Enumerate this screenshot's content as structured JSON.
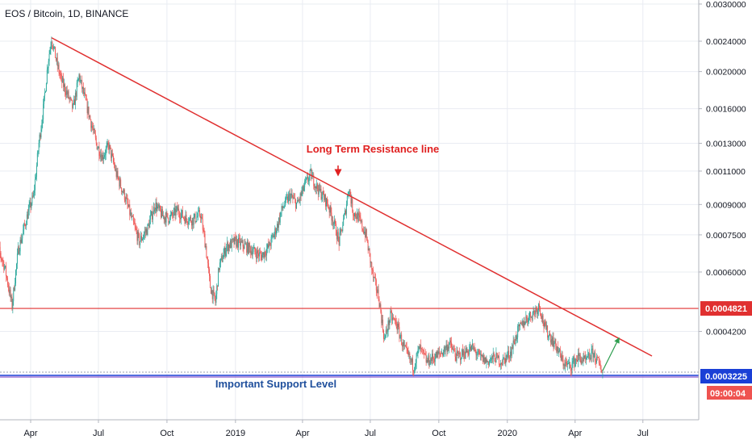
{
  "header": {
    "title": "EOS / Bitcoin, 1D, BINANCE"
  },
  "colors": {
    "up": "#26a69a",
    "down": "#ef5350",
    "resistance": "#e03030",
    "support_blue": "#1a3fd6",
    "support_purple": "#6a2bbf",
    "annotation_red": "#e02020",
    "annotation_blue": "#1f4f9c",
    "arrow_green": "#2e9e4f",
    "grid": "#e9ecf2"
  },
  "chart_data": {
    "type": "candlestick",
    "scale": "log",
    "ylim": [
      0.000285,
      0.003
    ],
    "yticks": [
      "0.0030000",
      "0.0024000",
      "0.0020000",
      "0.0016000",
      "0.0013000",
      "0.0011000",
      "0.0009000",
      "0.0007500",
      "0.0006000",
      "0.0004200"
    ],
    "xticks": [
      {
        "label": "Apr",
        "date": "2018-04-01"
      },
      {
        "label": "Jul",
        "date": "2018-07-01"
      },
      {
        "label": "Oct",
        "date": "2018-10-01"
      },
      {
        "label": "2019",
        "date": "2019-01-01"
      },
      {
        "label": "Apr",
        "date": "2019-04-01"
      },
      {
        "label": "Jul",
        "date": "2019-07-01"
      },
      {
        "label": "Oct",
        "date": "2019-10-01"
      },
      {
        "label": "2020",
        "date": "2020-01-01"
      },
      {
        "label": "Apr",
        "date": "2020-04-01"
      },
      {
        "label": "Jul",
        "date": "2020-07-01"
      }
    ],
    "price_path": [
      [
        "2018-02-10",
        0.00075
      ],
      [
        "2018-02-25",
        0.00062
      ],
      [
        "2018-03-07",
        0.00049
      ],
      [
        "2018-03-15",
        0.00068
      ],
      [
        "2018-03-28",
        0.00085
      ],
      [
        "2018-04-05",
        0.00095
      ],
      [
        "2018-04-12",
        0.0013
      ],
      [
        "2018-04-18",
        0.0016
      ],
      [
        "2018-04-24",
        0.0021
      ],
      [
        "2018-04-29",
        0.00245
      ],
      [
        "2018-05-05",
        0.00215
      ],
      [
        "2018-05-12",
        0.0019
      ],
      [
        "2018-05-20",
        0.00175
      ],
      [
        "2018-05-28",
        0.0016
      ],
      [
        "2018-06-05",
        0.00195
      ],
      [
        "2018-06-12",
        0.00172
      ],
      [
        "2018-06-20",
        0.0015
      ],
      [
        "2018-06-28",
        0.0013
      ],
      [
        "2018-07-06",
        0.0012
      ],
      [
        "2018-07-15",
        0.00128
      ],
      [
        "2018-07-25",
        0.00108
      ],
      [
        "2018-08-05",
        0.00095
      ],
      [
        "2018-08-15",
        0.00082
      ],
      [
        "2018-08-25",
        0.00072
      ],
      [
        "2018-09-05",
        0.00078
      ],
      [
        "2018-09-15",
        0.0009
      ],
      [
        "2018-09-25",
        0.00084
      ],
      [
        "2018-10-05",
        0.00083
      ],
      [
        "2018-10-15",
        0.00087
      ],
      [
        "2018-10-25",
        0.00083
      ],
      [
        "2018-11-05",
        0.00082
      ],
      [
        "2018-11-15",
        0.00085
      ],
      [
        "2018-11-22",
        0.0007
      ],
      [
        "2018-11-28",
        0.00055
      ],
      [
        "2018-12-05",
        0.0005
      ],
      [
        "2018-12-10",
        0.00062
      ],
      [
        "2018-12-20",
        0.0007
      ],
      [
        "2019-01-01",
        0.00072
      ],
      [
        "2019-01-15",
        0.0007
      ],
      [
        "2019-01-25",
        0.00068
      ],
      [
        "2019-02-05",
        0.00066
      ],
      [
        "2019-02-15",
        0.0007
      ],
      [
        "2019-02-25",
        0.00078
      ],
      [
        "2019-03-05",
        0.00088
      ],
      [
        "2019-03-15",
        0.00095
      ],
      [
        "2019-03-25",
        0.0009
      ],
      [
        "2019-04-05",
        0.00102
      ],
      [
        "2019-04-12",
        0.00108
      ],
      [
        "2019-04-20",
        0.001
      ],
      [
        "2019-04-28",
        0.00095
      ],
      [
        "2019-05-05",
        0.0009
      ],
      [
        "2019-05-12",
        0.00082
      ],
      [
        "2019-05-20",
        0.00072
      ],
      [
        "2019-05-28",
        0.00085
      ],
      [
        "2019-06-02",
        0.001
      ],
      [
        "2019-06-08",
        0.00086
      ],
      [
        "2019-06-15",
        0.00083
      ],
      [
        "2019-06-25",
        0.00075
      ],
      [
        "2019-07-05",
        0.00058
      ],
      [
        "2019-07-12",
        0.00052
      ],
      [
        "2019-07-20",
        0.0004
      ],
      [
        "2019-07-28",
        0.00046
      ],
      [
        "2019-08-05",
        0.00044
      ],
      [
        "2019-08-15",
        0.00038
      ],
      [
        "2019-08-28",
        0.00034
      ],
      [
        "2019-09-05",
        0.00038
      ],
      [
        "2019-09-15",
        0.00035
      ],
      [
        "2019-09-25",
        0.00036
      ],
      [
        "2019-10-05",
        0.00037
      ],
      [
        "2019-10-15",
        0.00039
      ],
      [
        "2019-10-25",
        0.00036
      ],
      [
        "2019-11-05",
        0.00037
      ],
      [
        "2019-11-15",
        0.00038
      ],
      [
        "2019-11-25",
        0.00036
      ],
      [
        "2019-12-05",
        0.00035
      ],
      [
        "2019-12-15",
        0.00036
      ],
      [
        "2019-12-25",
        0.00035
      ],
      [
        "2020-01-05",
        0.00037
      ],
      [
        "2020-01-15",
        0.00042
      ],
      [
        "2020-01-25",
        0.00045
      ],
      [
        "2020-02-05",
        0.00047
      ],
      [
        "2020-02-13",
        0.00049
      ],
      [
        "2020-02-20",
        0.00043
      ],
      [
        "2020-03-01",
        0.0004
      ],
      [
        "2020-03-08",
        0.00038
      ],
      [
        "2020-03-15",
        0.00035
      ],
      [
        "2020-03-25",
        0.00034
      ],
      [
        "2020-04-05",
        0.00036
      ],
      [
        "2020-04-15",
        0.00035
      ],
      [
        "2020-04-25",
        0.00037
      ],
      [
        "2020-05-08",
        0.00033
      ]
    ],
    "resistance_line": {
      "start": [
        "2018-04-29",
        0.00245
      ],
      "end": [
        "2020-07-01",
        0.00039
      ]
    },
    "horizontal_levels": [
      {
        "value": 0.0004821,
        "label": "0.0004821",
        "color": "#e03030"
      },
      {
        "value": 0.0003225,
        "label": "0.0003225",
        "color": "#1a3fd6"
      }
    ],
    "countdown": "09:00:04",
    "annotations": [
      {
        "text": "Long Term Resistance line"
      },
      {
        "text": "Important Support Level"
      }
    ],
    "projection_arrow": {
      "from": [
        "2020-05-08",
        0.00033
      ],
      "to": [
        "2020-06-01",
        0.0004
      ]
    }
  }
}
